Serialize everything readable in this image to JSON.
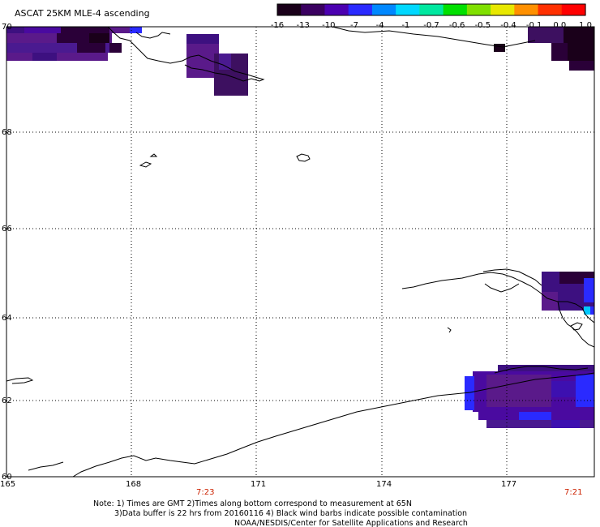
{
  "title": "ASCAT 25KM MLE-4 ascending",
  "colorbar": {
    "labels": [
      "-16",
      "-13",
      "-10",
      "-7",
      "-4",
      "-1",
      "-0.7",
      "-0.6",
      "-0.5",
      "-0.4",
      "-0.1",
      "0.0",
      "1.0"
    ],
    "colors": [
      "#1a001a",
      "#3a0060",
      "#4b00b0",
      "#2a2aff",
      "#0088ff",
      "#00d8ff",
      "#00e8a0",
      "#00e000",
      "#80e000",
      "#e8e800",
      "#ff9000",
      "#ff3000",
      "#ff0000"
    ]
  },
  "axes": {
    "lat_labels": [
      "70",
      "68",
      "66",
      "64",
      "62",
      "60"
    ],
    "lon_labels": [
      "165",
      "168",
      "171",
      "174",
      "177"
    ]
  },
  "time_labels": [
    "7:23",
    "7:21"
  ],
  "notes": [
    "Note: 1) Times are GMT 2)Times along bottom correspond to measurement at 65N",
    "3)Data buffer is 22 hrs from 20160116 4) Black wind barbs indicate possible contamination",
    "NOAA/NESDIS/Center for Satellite Applications and Research"
  ],
  "data_colors": {
    "dark": "#2a0038",
    "purple": "#5a1a8a",
    "violet": "#4a0aa0",
    "blue": "#2a2aff",
    "cyan": "#00c8ff",
    "black": "#0a000a"
  }
}
